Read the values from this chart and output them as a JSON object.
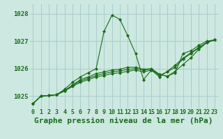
{
  "title": "Graphe pression niveau de la mer (hPa)",
  "bg_color": "#cce8e0",
  "grid_color": "#aacccc",
  "line_color": "#1a6b1a",
  "xlim": [
    -0.5,
    23.5
  ],
  "ylim": [
    1024.55,
    1028.35
  ],
  "yticks": [
    1025,
    1026,
    1027,
    1028
  ],
  "xticks": [
    0,
    1,
    2,
    3,
    4,
    5,
    6,
    7,
    8,
    9,
    10,
    11,
    12,
    13,
    14,
    15,
    16,
    17,
    18,
    19,
    20,
    21,
    22,
    23
  ],
  "series": [
    [
      1024.72,
      1025.0,
      1025.02,
      1025.05,
      1025.25,
      1025.5,
      1025.7,
      1025.85,
      1026.0,
      1027.35,
      1027.95,
      1027.8,
      1027.2,
      1026.55,
      1025.6,
      1025.95,
      1025.8,
      1025.72,
      1025.85,
      1026.55,
      1026.65,
      1026.85,
      1027.0,
      1027.05
    ],
    [
      1024.72,
      1025.0,
      1025.02,
      1025.05,
      1025.2,
      1025.4,
      1025.6,
      1025.7,
      1025.82,
      1025.88,
      1025.95,
      1025.98,
      1026.05,
      1026.05,
      1025.98,
      1026.0,
      1025.8,
      1025.72,
      1025.9,
      1026.15,
      1026.4,
      1026.7,
      1026.95,
      1027.05
    ],
    [
      1024.72,
      1025.0,
      1025.02,
      1025.05,
      1025.2,
      1025.38,
      1025.55,
      1025.65,
      1025.75,
      1025.82,
      1025.88,
      1025.92,
      1025.97,
      1026.0,
      1025.95,
      1025.98,
      1025.75,
      1025.88,
      1026.05,
      1026.35,
      1026.55,
      1026.75,
      1026.95,
      1027.05
    ],
    [
      1024.72,
      1025.0,
      1025.02,
      1025.05,
      1025.18,
      1025.35,
      1025.5,
      1025.6,
      1025.7,
      1025.75,
      1025.82,
      1025.85,
      1025.9,
      1025.95,
      1025.88,
      1025.95,
      1025.7,
      1025.9,
      1026.12,
      1026.38,
      1026.58,
      1026.78,
      1026.95,
      1027.05
    ]
  ],
  "title_fontsize": 8,
  "tick_fontsize": 6.0
}
